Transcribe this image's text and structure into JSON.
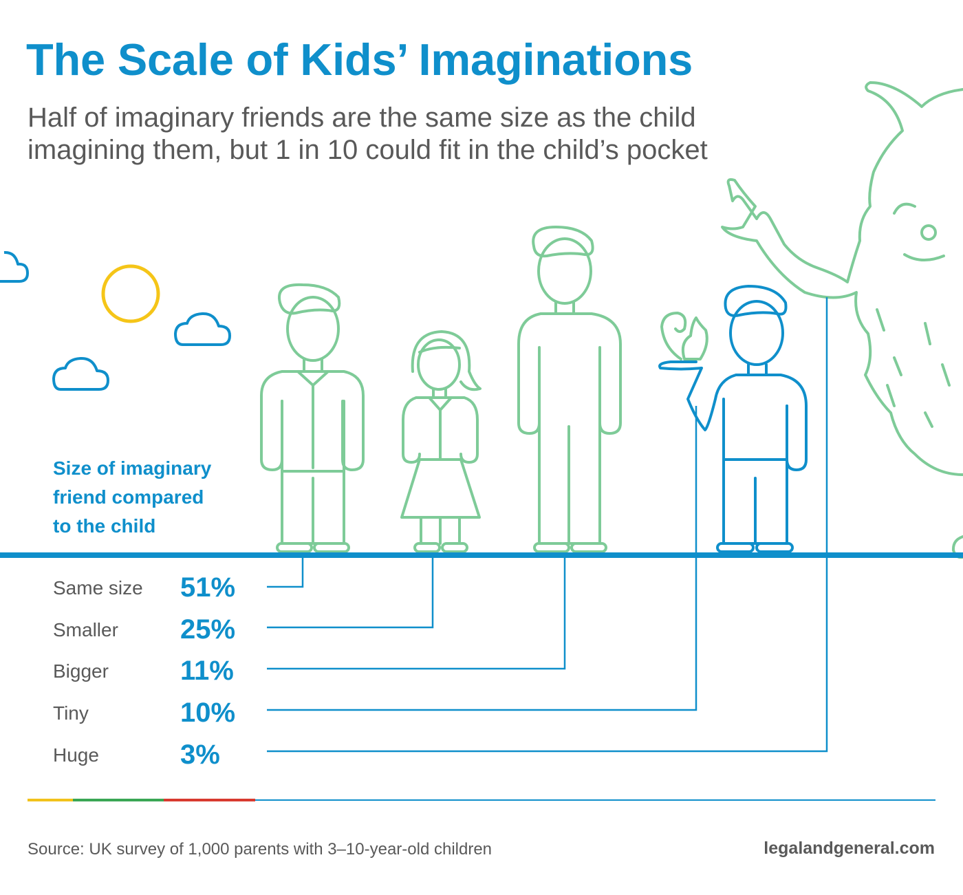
{
  "header": {
    "title": "The Scale of Kids’ Imaginations",
    "subtitle_lines": [
      "Half of imaginary friends are the same size as the child",
      "imagining them, but 1 in 10 could fit in the child’s pocket"
    ]
  },
  "legend": {
    "heading_lines": [
      "Size of imaginary",
      "friend compared",
      "to the child"
    ]
  },
  "chart_data": {
    "type": "table",
    "title": "The Scale of Kids’ Imaginations",
    "categories": [
      "Same size",
      "Smaller",
      "Bigger",
      "Tiny",
      "Huge"
    ],
    "values": [
      51,
      25,
      11,
      10,
      3
    ],
    "labels": [
      "51%",
      "25%",
      "11%",
      "10%",
      "3%"
    ],
    "unit": "%"
  },
  "footer": {
    "source": "Source: UK survey of 1,000 parents with 3–10-year-old children",
    "website": "legalandgeneral.com"
  },
  "colors": {
    "accent_blue": "#0f8fcb",
    "figure_green": "#7ecb98",
    "sun_yellow": "#f5c518",
    "text_grey": "#595959",
    "bar_yellow": "#f2c21b",
    "bar_green": "#3aa655",
    "bar_red": "#d83a2f",
    "bar_blue": "#0f8fcb"
  },
  "icons": [
    "cloud-icon",
    "sun-icon",
    "friend-same-size-figure",
    "friend-smaller-figure",
    "friend-bigger-figure",
    "child-figure",
    "squirrel-tiny-friend",
    "monster-huge-friend"
  ]
}
